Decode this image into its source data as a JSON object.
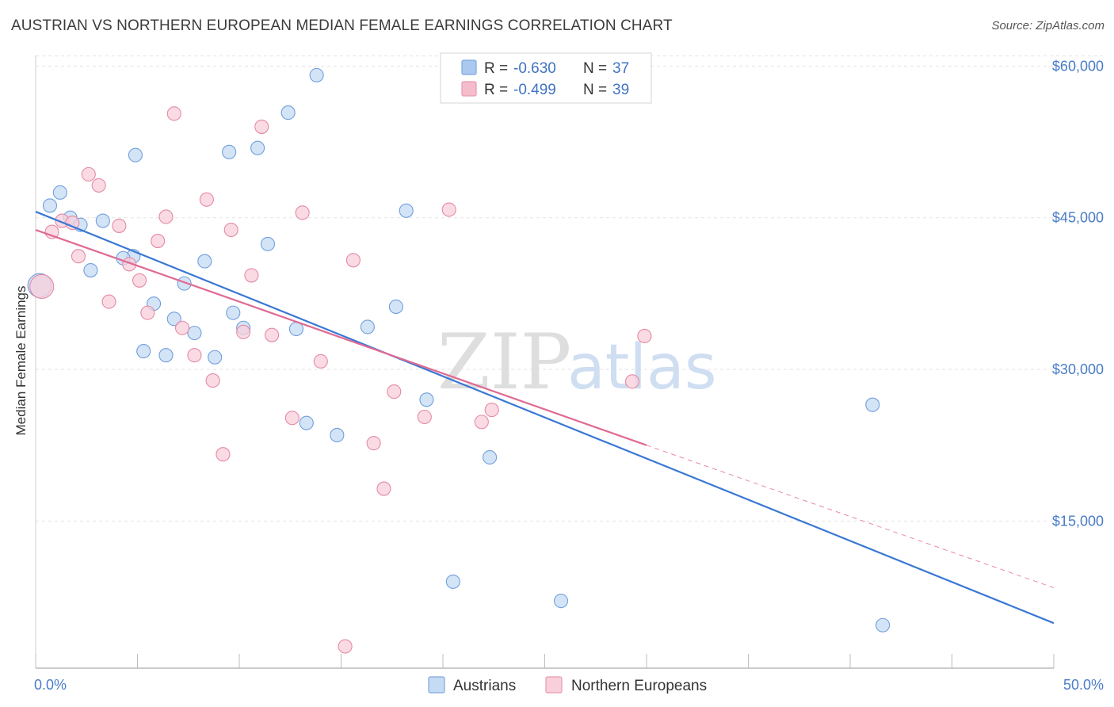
{
  "header": {
    "title": "AUSTRIAN VS NORTHERN EUROPEAN MEDIAN FEMALE EARNINGS CORRELATION CHART",
    "source": "Source: ZipAtlas.com"
  },
  "watermark": {
    "zip": "ZIP",
    "atlas": "atlas"
  },
  "legend": {
    "rows": [
      {
        "r_label": "R =",
        "r_value": "-0.630",
        "n_label": "N =",
        "n_value": "37",
        "color": "#aac8f0"
      },
      {
        "r_label": "R =",
        "r_value": "-0.499",
        "n_label": "N =",
        "n_value": "39",
        "color": "#f5bccc"
      }
    ]
  },
  "chart_data": {
    "type": "scatter",
    "title": "AUSTRIAN VS NORTHERN EUROPEAN MEDIAN FEMALE EARNINGS CORRELATION CHART",
    "xlabel": "",
    "ylabel": "Median Female Earnings",
    "xlim": [
      0,
      50
    ],
    "ylim": [
      0,
      62000
    ],
    "x_tick_labels": [
      "0.0%",
      "50.0%"
    ],
    "y_ticks": [
      15000,
      30000,
      45000,
      60000
    ],
    "y_tick_labels": [
      "$15,000",
      "$30,000",
      "$45,000",
      "$60,000"
    ],
    "grid": true,
    "legend_position": "top-center",
    "series": [
      {
        "name": "Austrians",
        "color": "#6f9fdc",
        "fill": "#c5dbf4",
        "line_color": "#3a78d4",
        "r": -0.63,
        "n": 37,
        "trend": {
          "x0": 0,
          "y0": 45600,
          "x1": 50,
          "y1": 4900
        },
        "points": [
          [
            0.2,
            38300
          ],
          [
            0.7,
            46200
          ],
          [
            1.2,
            47500
          ],
          [
            1.7,
            45000
          ],
          [
            2.2,
            44300
          ],
          [
            2.7,
            39800
          ],
          [
            3.3,
            44700
          ],
          [
            4.8,
            41200
          ],
          [
            4.3,
            41000
          ],
          [
            4.9,
            51200
          ],
          [
            5.3,
            31800
          ],
          [
            5.8,
            36500
          ],
          [
            6.4,
            31400
          ],
          [
            6.8,
            35000
          ],
          [
            7.3,
            38500
          ],
          [
            7.8,
            33600
          ],
          [
            8.3,
            40700
          ],
          [
            8.8,
            31200
          ],
          [
            9.5,
            51500
          ],
          [
            9.7,
            35600
          ],
          [
            10.2,
            34100
          ],
          [
            10.9,
            51900
          ],
          [
            11.4,
            42400
          ],
          [
            12.8,
            34000
          ],
          [
            12.4,
            55400
          ],
          [
            13.3,
            24700
          ],
          [
            13.8,
            59100
          ],
          [
            14.8,
            23500
          ],
          [
            16.3,
            34200
          ],
          [
            17.7,
            36200
          ],
          [
            18.2,
            45700
          ],
          [
            19.2,
            27000
          ],
          [
            20.5,
            9000
          ],
          [
            22.3,
            21300
          ],
          [
            25.8,
            7100
          ],
          [
            41.1,
            26500
          ],
          [
            41.6,
            4700
          ]
        ]
      },
      {
        "name": "Northern Europeans",
        "color": "#e48aa5",
        "fill": "#f8cfdb",
        "line_color": "#e06a93",
        "r": -0.499,
        "n": 39,
        "trend": {
          "x0": 0,
          "y0": 43800,
          "x1": 30,
          "y1": 22500,
          "dash_x1": 50,
          "dash_y1": 8400
        },
        "points": [
          [
            0.3,
            38200
          ],
          [
            0.8,
            43600
          ],
          [
            1.3,
            44700
          ],
          [
            1.8,
            44500
          ],
          [
            2.1,
            41200
          ],
          [
            2.6,
            49300
          ],
          [
            3.1,
            48200
          ],
          [
            3.6,
            36700
          ],
          [
            4.1,
            44200
          ],
          [
            4.6,
            40400
          ],
          [
            5.1,
            38800
          ],
          [
            5.5,
            35600
          ],
          [
            6.0,
            42700
          ],
          [
            6.4,
            45100
          ],
          [
            6.8,
            55300
          ],
          [
            7.2,
            34100
          ],
          [
            7.8,
            31400
          ],
          [
            8.4,
            46800
          ],
          [
            8.7,
            28900
          ],
          [
            9.2,
            21600
          ],
          [
            9.6,
            43800
          ],
          [
            10.2,
            33700
          ],
          [
            10.6,
            39300
          ],
          [
            11.1,
            54000
          ],
          [
            11.6,
            33400
          ],
          [
            12.6,
            25200
          ],
          [
            13.1,
            45500
          ],
          [
            14.0,
            30800
          ],
          [
            15.2,
            2600
          ],
          [
            15.6,
            40800
          ],
          [
            16.6,
            22700
          ],
          [
            17.1,
            18200
          ],
          [
            17.6,
            27800
          ],
          [
            19.1,
            25300
          ],
          [
            20.3,
            45800
          ],
          [
            21.9,
            24800
          ],
          [
            22.4,
            26000
          ],
          [
            29.3,
            28800
          ],
          [
            29.9,
            33300
          ]
        ]
      }
    ]
  }
}
